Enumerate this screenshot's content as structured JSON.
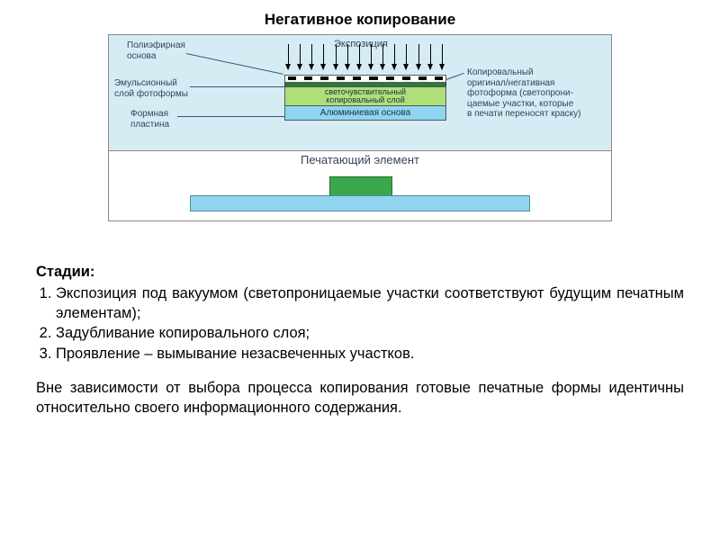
{
  "title": "Негативное копирование",
  "diagram": {
    "bg_top": "#d6ecf5",
    "bg_bottom": "#ffffff",
    "labels": {
      "polyester": "Полиэфирная\nоснова",
      "exposure": "Экспозиция",
      "emulsion_layer": "Эмульсионный\nслой фотоформы",
      "plate": "Формная\nпластина",
      "copy_original": "Копировальный\nоригинал/негативная\nфотоформа (светопрони-\nцаемые участки, которые\nв печати переносят краску)"
    },
    "stack": {
      "photolayer_line1": "светочувствительный",
      "photolayer_line2": "копировальный слой",
      "alubase": "Алюминиевая основа",
      "photolayer_color": "#aee07a",
      "emulsion_color": "#2d7a3a",
      "alubase_color": "#8fd5f0"
    },
    "bottom": {
      "label": "Печатающий элемент",
      "block_color": "#3aa84a",
      "strip_color": "#8fd5f0"
    },
    "arrow_count": 14
  },
  "text": {
    "stages_heading": "Стадии:",
    "stage1": "Экспозиция под вакуумом (светопроницаемые участки соответствуют будущим печатным элементам);",
    "stage2": "Задубливание копировального слоя;",
    "stage3": "Проявление – вымывание незасвеченных участков.",
    "footer": "Вне зависимости от выбора процесса копирования готовые печатные формы идентичны относительно своего информационного содержания."
  }
}
